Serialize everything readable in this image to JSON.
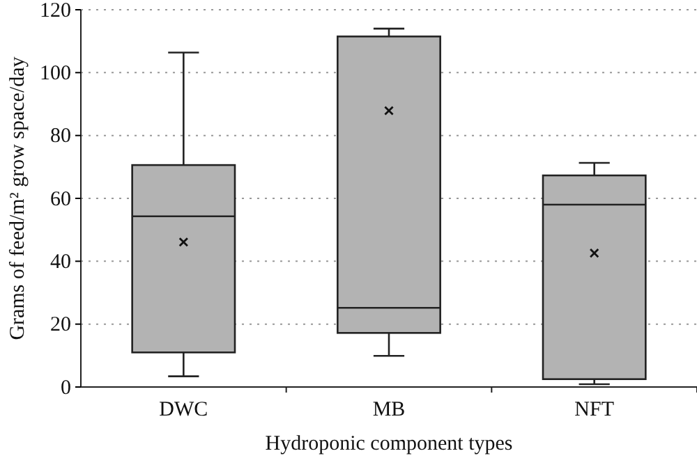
{
  "chart_data": {
    "type": "box",
    "xlabel": "Hydroponic component types",
    "ylabel": "Grams of feed/m² grow space/day",
    "categories": [
      "DWC",
      "MB",
      "NFT"
    ],
    "boxes": [
      {
        "low": 3.4,
        "q1": 11,
        "median": 54.3,
        "q3": 70.6,
        "high": 106.4,
        "mean": 46.1
      },
      {
        "low": 9.9,
        "q1": 17.2,
        "median": 25.2,
        "q3": 111.5,
        "high": 114,
        "mean": 87.9
      },
      {
        "low": 0.9,
        "q1": 2.5,
        "median": 58,
        "q3": 67.3,
        "high": 71.3,
        "mean": 42.6
      }
    ],
    "color": "#b3b3b3",
    "marker": "cross",
    "ylim": [
      0,
      120
    ],
    "yticks": [
      0,
      20,
      40,
      60,
      80,
      100,
      120
    ],
    "grid": "y"
  }
}
